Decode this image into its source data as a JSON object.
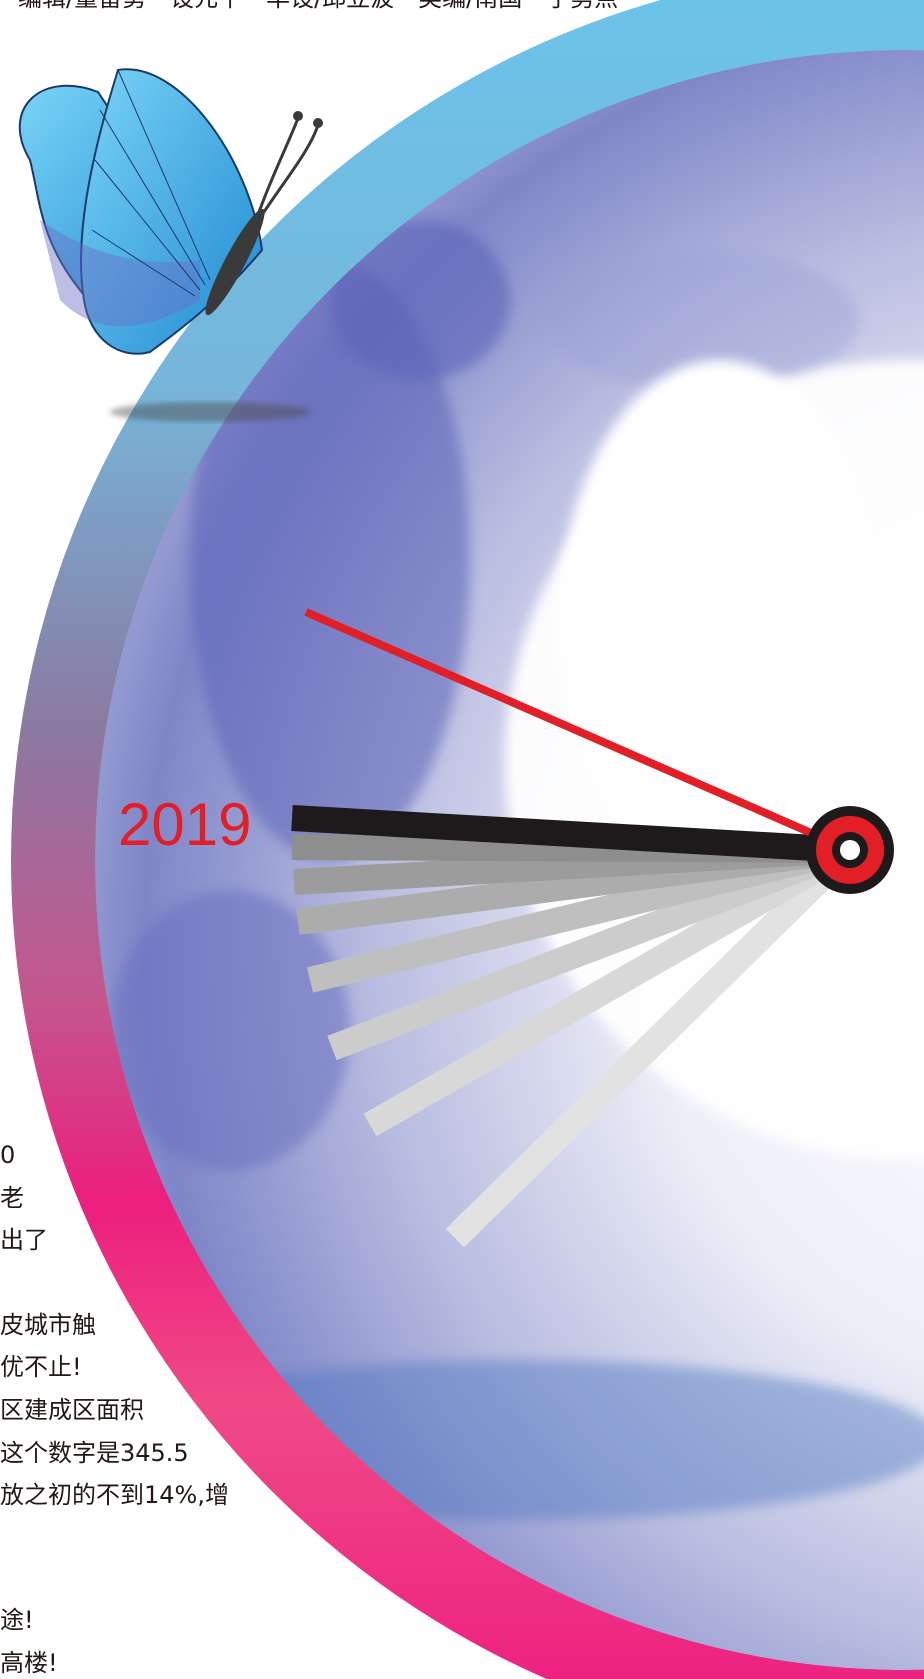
{
  "header": {
    "text": "编辑/董雷勇　设元午　华设/邱立波　美编/南国　了剪点"
  },
  "year_label": "2019",
  "body_lines": [
    "0",
    "老",
    "出了",
    "皮城市触",
    "优不止!",
    "区建成区面积",
    "这个数字是345.5",
    "放之初的不到14%,增",
    "途!",
    "高楼!"
  ],
  "colors": {
    "ring_top": "#6cc3e9",
    "ring_mid": "#8a6f9e",
    "ring_bottom": "#ec1e7e",
    "hand_red": "#e21e26",
    "hand_black": "#1e1a1b",
    "watercolor": "#5b64b8",
    "butterfly_blue": "#39a7e0"
  },
  "icons": {
    "butterfly": "butterfly-icon",
    "clock_pivot": "clock-pivot-icon"
  }
}
